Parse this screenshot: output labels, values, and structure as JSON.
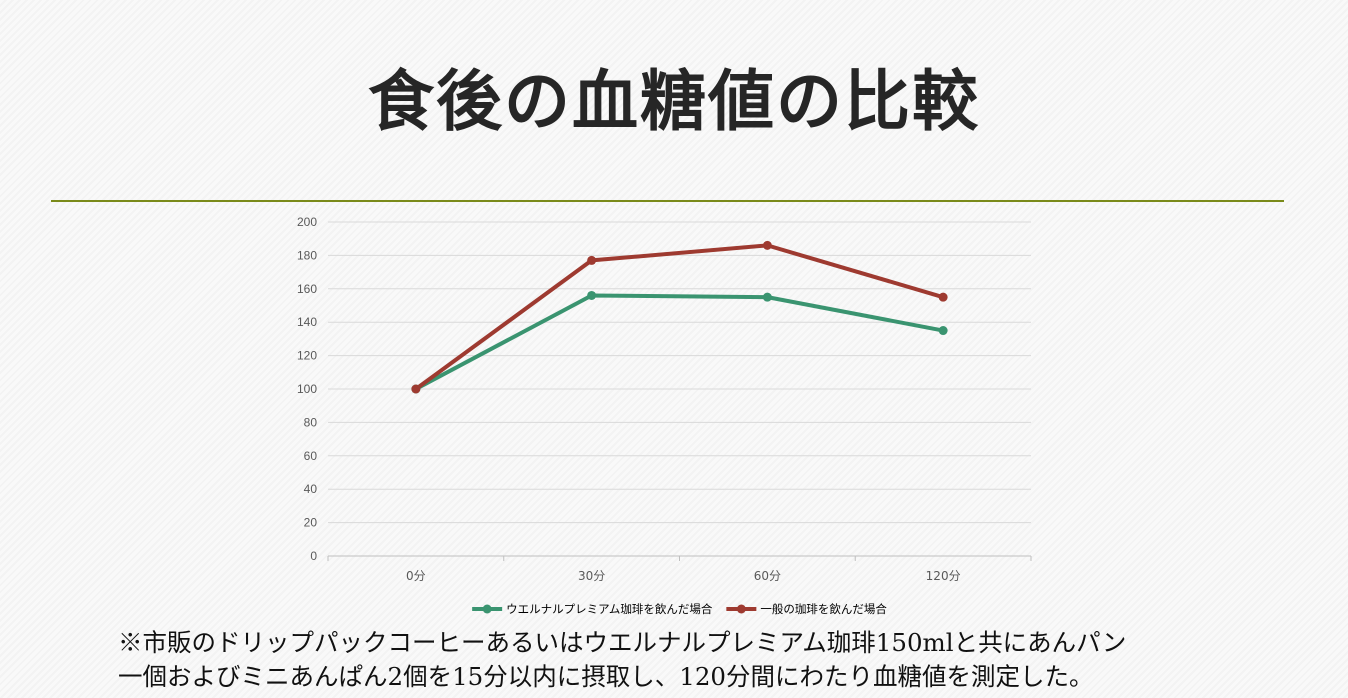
{
  "slide": {
    "title": "食後の血糖値の比較",
    "caption_line1": "※市販のドリップパックコーヒーあるいはウエルナルプレミアム珈琲150mlと共にあんパン",
    "caption_line2": "一個およびミニあんぱん2個を15分以内に摂取し、120分間にわたり血糖値を測定した。",
    "rule_color": "#7a8a1a"
  },
  "chart_data": {
    "type": "line",
    "categories": [
      "0分",
      "30分",
      "60分",
      "120分"
    ],
    "series": [
      {
        "name": "ウエルナルプレミアム珈琲を飲んだ場合",
        "color": "#3a9470",
        "values": [
          100,
          156,
          155,
          135
        ]
      },
      {
        "name": "一般の珈琲を飲んだ場合",
        "color": "#9e3a30",
        "values": [
          100,
          177,
          186,
          155
        ]
      }
    ],
    "ylim": [
      0,
      200
    ],
    "yticks": [
      0,
      20,
      40,
      60,
      80,
      100,
      120,
      140,
      160,
      180,
      200
    ],
    "grid": true,
    "legend": "bottom"
  }
}
